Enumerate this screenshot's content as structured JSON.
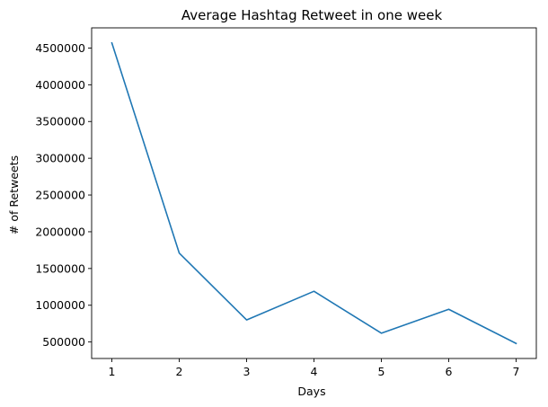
{
  "chart_data": {
    "type": "line",
    "title": "Average Hashtag Retweet in one week",
    "xlabel": "Days",
    "ylabel": "# of Retweets",
    "x": [
      1,
      2,
      3,
      4,
      5,
      6,
      7
    ],
    "series": [
      {
        "values": [
          4570000,
          1710000,
          800000,
          1190000,
          620000,
          945000,
          480000
        ],
        "color": "#1f77b4"
      }
    ],
    "xticks": [
      1,
      2,
      3,
      4,
      5,
      6,
      7
    ],
    "xtick_labels": [
      "1",
      "2",
      "3",
      "4",
      "5",
      "6",
      "7"
    ],
    "yticks": [
      500000,
      1000000,
      1500000,
      2000000,
      2500000,
      3000000,
      3500000,
      4000000,
      4500000
    ],
    "ytick_labels": [
      "500000",
      "1000000",
      "1500000",
      "2000000",
      "2500000",
      "3000000",
      "3500000",
      "4000000",
      "4500000"
    ],
    "xlim": [
      0.7,
      7.3
    ],
    "ylim": [
      275500,
      4774500
    ],
    "grid": false,
    "legend": "none"
  }
}
